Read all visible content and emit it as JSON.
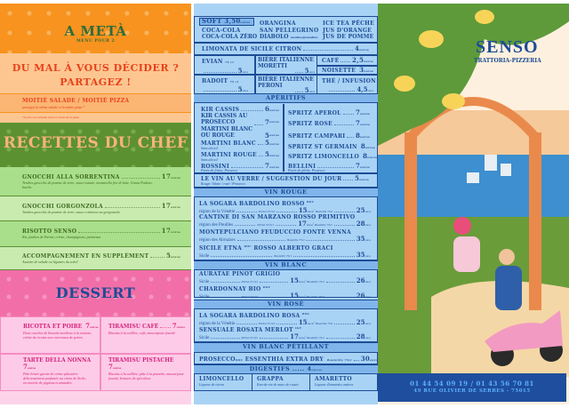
{
  "currency": "euros",
  "left": {
    "meta": {
      "title": "A METÀ",
      "subtitle": "MENU POUR 2"
    },
    "share": {
      "headline1": "DU MAL À VOUS DÉCIDER ?",
      "headline2": "PARTAGEZ !",
      "item": "MOITIÉ SALADE / MOITIÉ PIZZA",
      "desc": "partagez la même salade et la même pizza *",
      "note": "*le prix est variable selon le choix de la pizza"
    },
    "chef": {
      "title": "RECETTES DU CHEF",
      "items": [
        {
          "name": "GNOCCHI ALLA SORRENTINA",
          "price": "17",
          "desc": "Tendres gnocchis de pomme de terre, sauce tomate, mozzarella fior di latte, Grana Padano, basilic"
        },
        {
          "name": "GNOCCHI GORGONZOLA",
          "price": "17",
          "desc": "Tendres gnocchis de pomme de terre, sauce crémeuse au gorgonzola"
        },
        {
          "name": "RISOTTO SENSO",
          "price": "17",
          "desc": "Riz, jambon de Parme, crème, champignons, parmesan"
        },
        {
          "name": "ACCOMPAGNEMENT EN SUPPLÉMENT",
          "price": "5",
          "desc": "Assiette de salade ou légumes du soleil"
        }
      ]
    },
    "dessert": {
      "title": "DESSERT",
      "items": [
        {
          "name": "RICOTTA ET POIRE",
          "price": "7",
          "desc": "Deux couches de biscuits moelleux à la noisette, crème de ricotta avec morceaux de poires"
        },
        {
          "name": "TIRAMISU CAFÉ",
          "price": "7",
          "desc": "Biscuits à la cuillère, café, mascarpone fouetté"
        },
        {
          "name": "TARTE DELLA NONNA",
          "price": "7",
          "desc": "Pâte brisée garnie de crème pâtissière délicieusement parfumée au citron de Sicile, recouverte de pignons et amandes"
        },
        {
          "name": "TIRAMISU PISTACHE",
          "price": "7",
          "desc": "Biscuits à la cuillère, pâte à la pistache, mascarpone fouetté, brisures de spéculoos"
        }
      ]
    }
  },
  "drinks": {
    "soft": {
      "label": "SOFT",
      "price": "3,50",
      "items": [
        "COCA-COLA",
        "COCA-COLA ZÉRO",
        "ORANGINA",
        "SAN PELLEGRINO",
        "DIABOLO",
        "menthe/grenadine",
        "ICE TEA PÊCHE",
        "JUS D'ORANGE",
        "JUS DE POMME"
      ]
    },
    "limonata": {
      "name": "LIMONATA DE SICILE CITRON",
      "price": "4"
    },
    "evian": {
      "name": "EVIAN",
      "size": "75 cl",
      "price": "5"
    },
    "badoit": {
      "name": "BADOIT",
      "size": "75 cl",
      "price": "5"
    },
    "moretti": {
      "name": "BIÈRE ITALIENNE MORETTI",
      "price": "5"
    },
    "peroni": {
      "name": "BIÈRE ITALIENNE PERONI",
      "price": "5"
    },
    "cafe": {
      "name": "CAFÉ",
      "price": "2,5"
    },
    "noisette": {
      "name": "NOISETTE",
      "price": "3"
    },
    "the": {
      "name": "THÉ / INFUSION",
      "price": "4,5"
    },
    "aperitifs": {
      "title": "APÉRITIFS",
      "left": [
        {
          "name": "KIR CASSIS",
          "price": "6"
        },
        {
          "name": "KIR CASSIS AU PROSECCO",
          "price": "7"
        },
        {
          "name": "MARTINI BLANC OU ROUGE",
          "price": "5"
        },
        {
          "name": "MARTINI BLANC",
          "price": "5",
          "desc": "Sans alcool"
        },
        {
          "name": "MARTINI ROUGE",
          "price": "5",
          "desc": "Sans alcool"
        },
        {
          "name": "ROSSINI",
          "price": "7",
          "desc": "Purée de fraise, Prosecco"
        }
      ],
      "right": [
        {
          "name": "SPRITZ APEROL",
          "price": "7"
        },
        {
          "name": "SPRITZ ROSE",
          "price": "7"
        },
        {
          "name": "SPRITZ CAMPARI",
          "price": "8"
        },
        {
          "name": "SPRITZ ST GERMAIN",
          "price": "8"
        },
        {
          "name": "SPRITZ LIMONCELLO",
          "price": "8"
        },
        {
          "name": "BELLINI",
          "price": "7",
          "desc": "Purée de pêche, Prosecco"
        }
      ]
    },
    "verre": {
      "name": "LE VIN AU VERRE / SUGGESTION DU JOUR",
      "price": "5",
      "desc": "Rouge / blanc / rosé / Prosecco"
    },
    "pichet": "Pichet 37,5cl",
    "bouteille": "Bouteille 75cl",
    "rouge": {
      "title": "VIN ROUGE",
      "items": [
        {
          "name": "LA SOGARA BARDOLINO ROSSO",
          "tag": "DOC",
          "region": "région de la Vénétie",
          "pichet": "15",
          "bouteille": "25"
        },
        {
          "name": "CANTINE DI SAN MARZANO ROSSO PRIMITIVO",
          "tag": "",
          "region": "région des Pouilles",
          "pichet": "17",
          "bouteille": "28"
        },
        {
          "name": "MONTEPULCIANO FEUDUCCIO FONTE VENNA",
          "tag": "",
          "region": "région des Abruzzes",
          "pichet": "",
          "bouteille": "35"
        },
        {
          "name": "SICILE ETNA",
          "tag": "DOC",
          "name2": "ROSSO ALBERTO GRACI",
          "region": "Sicile",
          "pichet": "",
          "bouteille": "35"
        }
      ]
    },
    "blanc": {
      "title": "VIN BLANC",
      "items": [
        {
          "name": "AURATAE PINOT GRIGIO",
          "tag": "",
          "region": "Sicile",
          "pichet": "15",
          "bouteille": "26"
        },
        {
          "name": "CHARDONNAY BIO",
          "tag": "DOC",
          "region": "Sicile",
          "pichet": "15",
          "bouteille": "26"
        }
      ]
    },
    "rose": {
      "title": "VIN ROSÉ",
      "items": [
        {
          "name": "LA SOGARA BARDOLINO ROSA",
          "tag": "DOC",
          "region": "région de la Vénétie",
          "pichet": "15",
          "bouteille": "25"
        },
        {
          "name": "SENSUALE ROSATA MERLOT",
          "tag": "IGT",
          "region": "Sicile",
          "pichet": "17",
          "bouteille": "28"
        }
      ]
    },
    "petillant": {
      "title": "VIN BLANC PÉTILLANT",
      "name": "PROSECCO",
      "tag": "DOC",
      "name2": "ESSENTHIA EXTRA DRY",
      "bouteille": "30"
    },
    "digestifs": {
      "title": "DIGESTIFS",
      "price": "4",
      "items": [
        {
          "name": "LIMONCELLO",
          "desc": "Liqueur de citron"
        },
        {
          "name": "GRAPPA",
          "desc": "Eau-de-vie de marc de raisin"
        },
        {
          "name": "AMARETTO",
          "desc": "Liqueur d'amandes amères"
        }
      ]
    }
  },
  "brand": {
    "name": "SENSO",
    "tagline": "TRATTORIA-PIZZERIA",
    "phone": "01 44 54 09 19 / 01 43 56 70 81",
    "address": "49 RUE OLIVIER DE SERRES - 75015"
  },
  "colors": {
    "orange": "#f7931e",
    "green": "#5c9131",
    "pink": "#f26ea8",
    "blue": "#1d4c96",
    "lightblue": "#a9d3f5"
  }
}
